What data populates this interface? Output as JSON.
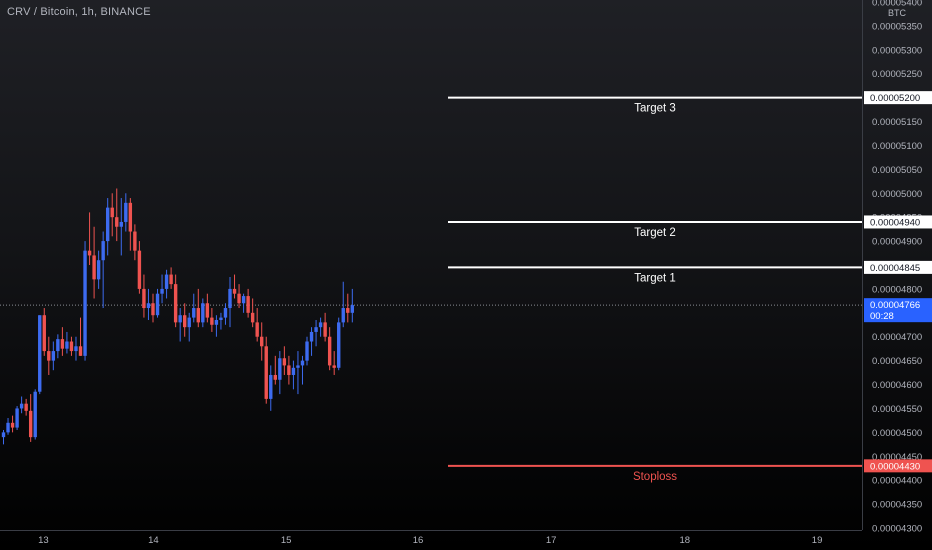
{
  "header": {
    "symbol_title": "CRV / Bitcoin, 1h, BINANCE"
  },
  "price_axis": {
    "currency": "BTC",
    "current_price": "0.00004766",
    "countdown": "00:28"
  },
  "colors": {
    "up": "#3d6bf0",
    "down": "#ef5350",
    "target_line": "#ffffff",
    "stop_line": "#ef5350",
    "axis_text": "#b2b5be",
    "price_tag_bg": "#2962ff"
  },
  "chart_data": {
    "type": "candlestick",
    "ylim": [
      4.3e-05,
      5.4e-05
    ],
    "y_ticks": [
      "0.00004300",
      "0.00004350",
      "0.00004400",
      "0.00004450",
      "0.00004500",
      "0.00004550",
      "0.00004600",
      "0.00004650",
      "0.00004700",
      "0.00004750",
      "0.00004800",
      "0.00004850",
      "0.00004900",
      "0.00004950",
      "0.00005000",
      "0.00005050",
      "0.00005100",
      "0.00005150",
      "0.00005200",
      "0.00005250",
      "0.00005300",
      "0.00005350",
      "0.00005400"
    ],
    "x_ticks": [
      {
        "label": "13",
        "index": 8.8
      },
      {
        "label": "14",
        "index": 33.1
      },
      {
        "label": "15",
        "index": 62.4
      },
      {
        "label": "16",
        "index": 91.5
      },
      {
        "label": "17",
        "index": 120.9
      },
      {
        "label": "18",
        "index": 150.4
      },
      {
        "label": "19",
        "index": 179.6
      }
    ],
    "levels": [
      {
        "name": "Target 3",
        "value": 5.2e-05,
        "label": "0.00005200",
        "kind": "target"
      },
      {
        "name": "Target 2",
        "value": 4.94e-05,
        "label": "0.00004940",
        "kind": "target"
      },
      {
        "name": "Target 1",
        "value": 4.845e-05,
        "label": "0.00004845",
        "kind": "target"
      },
      {
        "name": "Stoploss",
        "value": 4.43e-05,
        "label": "0.00004430",
        "kind": "stop"
      }
    ],
    "ohlc": [
      [
        4.49e-05,
        4.505e-05,
        4.475e-05,
        4.5e-05
      ],
      [
        4.5e-05,
        4.53e-05,
        4.495e-05,
        4.52e-05
      ],
      [
        4.52e-05,
        4.535e-05,
        4.5e-05,
        4.51e-05
      ],
      [
        4.51e-05,
        4.555e-05,
        4.505e-05,
        4.55e-05
      ],
      [
        4.55e-05,
        4.575e-05,
        4.54e-05,
        4.56e-05
      ],
      [
        4.56e-05,
        4.57e-05,
        4.535e-05,
        4.545e-05
      ],
      [
        4.545e-05,
        4.58e-05,
        4.48e-05,
        4.49e-05
      ],
      [
        4.49e-05,
        4.59e-05,
        4.485e-05,
        4.585e-05
      ],
      [
        4.585e-05,
        4.745e-05,
        4.58e-05,
        4.745e-05
      ],
      [
        4.745e-05,
        4.76e-05,
        4.66e-05,
        4.67e-05
      ],
      [
        4.67e-05,
        4.7e-05,
        4.62e-05,
        4.65e-05
      ],
      [
        4.65e-05,
        4.69e-05,
        4.63e-05,
        4.67e-05
      ],
      [
        4.67e-05,
        4.705e-05,
        4.655e-05,
        4.695e-05
      ],
      [
        4.695e-05,
        4.72e-05,
        4.66e-05,
        4.675e-05
      ],
      [
        4.675e-05,
        4.71e-05,
        4.665e-05,
        4.69e-05
      ],
      [
        4.69e-05,
        4.7e-05,
        4.66e-05,
        4.67e-05
      ],
      [
        4.67e-05,
        4.7e-05,
        4.65e-05,
        4.68e-05
      ],
      [
        4.68e-05,
        4.74e-05,
        4.66e-05,
        4.66e-05
      ],
      [
        4.66e-05,
        4.9e-05,
        4.65e-05,
        4.88e-05
      ],
      [
        4.88e-05,
        4.96e-05,
        4.85e-05,
        4.87e-05
      ],
      [
        4.87e-05,
        4.93e-05,
        4.78e-05,
        4.82e-05
      ],
      [
        4.82e-05,
        4.88e-05,
        4.8e-05,
        4.86e-05
      ],
      [
        4.86e-05,
        4.92e-05,
        4.76e-05,
        4.9e-05
      ],
      [
        4.9e-05,
        4.99e-05,
        4.87e-05,
        4.97e-05
      ],
      [
        4.97e-05,
        5e-05,
        4.91e-05,
        4.95e-05
      ],
      [
        4.95e-05,
        5.01e-05,
        4.9e-05,
        4.93e-05
      ],
      [
        4.93e-05,
        4.99e-05,
        4.87e-05,
        4.94e-05
      ],
      [
        4.94e-05,
        5e-05,
        4.92e-05,
        4.98e-05
      ],
      [
        4.98e-05,
        4.99e-05,
        4.88e-05,
        4.92e-05
      ],
      [
        4.92e-05,
        4.935e-05,
        4.86e-05,
        4.88e-05
      ],
      [
        4.88e-05,
        4.9e-05,
        4.79e-05,
        4.8e-05
      ],
      [
        4.8e-05,
        4.83e-05,
        4.74e-05,
        4.76e-05
      ],
      [
        4.76e-05,
        4.8e-05,
        4.735e-05,
        4.77e-05
      ],
      [
        4.77e-05,
        4.79e-05,
        4.73e-05,
        4.745e-05
      ],
      [
        4.745e-05,
        4.8e-05,
        4.74e-05,
        4.79e-05
      ],
      [
        4.79e-05,
        4.83e-05,
        4.77e-05,
        4.8e-05
      ],
      [
        4.8e-05,
        4.84e-05,
        4.78e-05,
        4.83e-05
      ],
      [
        4.83e-05,
        4.845e-05,
        4.8e-05,
        4.81e-05
      ],
      [
        4.81e-05,
        4.83e-05,
        4.72e-05,
        4.73e-05
      ],
      [
        4.73e-05,
        4.76e-05,
        4.69e-05,
        4.745e-05
      ],
      [
        4.745e-05,
        4.77e-05,
        4.7e-05,
        4.72e-05
      ],
      [
        4.72e-05,
        4.75e-05,
        4.69e-05,
        4.74e-05
      ],
      [
        4.74e-05,
        4.79e-05,
        4.73e-05,
        4.76e-05
      ],
      [
        4.76e-05,
        4.8e-05,
        4.72e-05,
        4.73e-05
      ],
      [
        4.73e-05,
        4.78e-05,
        4.72e-05,
        4.77e-05
      ],
      [
        4.77e-05,
        4.79e-05,
        4.73e-05,
        4.74e-05
      ],
      [
        4.74e-05,
        4.76e-05,
        4.71e-05,
        4.725e-05
      ],
      [
        4.725e-05,
        4.745e-05,
        4.7e-05,
        4.735e-05
      ],
      [
        4.735e-05,
        4.75e-05,
        4.715e-05,
        4.74e-05
      ],
      [
        4.74e-05,
        4.77e-05,
        4.725e-05,
        4.76e-05
      ],
      [
        4.76e-05,
        4.825e-05,
        4.72e-05,
        4.8e-05
      ],
      [
        4.8e-05,
        4.83e-05,
        4.78e-05,
        4.79e-05
      ],
      [
        4.79e-05,
        4.81e-05,
        4.76e-05,
        4.77e-05
      ],
      [
        4.77e-05,
        4.79e-05,
        4.75e-05,
        4.785e-05
      ],
      [
        4.785e-05,
        4.8e-05,
        4.74e-05,
        4.75e-05
      ],
      [
        4.75e-05,
        4.78e-05,
        4.72e-05,
        4.73e-05
      ],
      [
        4.73e-05,
        4.76e-05,
        4.69e-05,
        4.7e-05
      ],
      [
        4.7e-05,
        4.73e-05,
        4.65e-05,
        4.68e-05
      ],
      [
        4.68e-05,
        4.7e-05,
        4.56e-05,
        4.57e-05
      ],
      [
        4.57e-05,
        4.64e-05,
        4.545e-05,
        4.62e-05
      ],
      [
        4.62e-05,
        4.66e-05,
        4.6e-05,
        4.61e-05
      ],
      [
        4.61e-05,
        4.67e-05,
        4.58e-05,
        4.655e-05
      ],
      [
        4.655e-05,
        4.68e-05,
        4.62e-05,
        4.64e-05
      ],
      [
        4.64e-05,
        4.66e-05,
        4.6e-05,
        4.62e-05
      ],
      [
        4.62e-05,
        4.65e-05,
        4.59e-05,
        4.635e-05
      ],
      [
        4.635e-05,
        4.67e-05,
        4.58e-05,
        4.64e-05
      ],
      [
        4.64e-05,
        4.66e-05,
        4.6e-05,
        4.65e-05
      ],
      [
        4.65e-05,
        4.7e-05,
        4.64e-05,
        4.69e-05
      ],
      [
        4.69e-05,
        4.72e-05,
        4.66e-05,
        4.71e-05
      ],
      [
        4.71e-05,
        4.735e-05,
        4.68e-05,
        4.72e-05
      ],
      [
        4.72e-05,
        4.74e-05,
        4.7e-05,
        4.73e-05
      ],
      [
        4.73e-05,
        4.75e-05,
        4.69e-05,
        4.7e-05
      ],
      [
        4.7e-05,
        4.72e-05,
        4.63e-05,
        4.64e-05
      ],
      [
        4.64e-05,
        4.67e-05,
        4.62e-05,
        4.635e-05
      ],
      [
        4.635e-05,
        4.74e-05,
        4.63e-05,
        4.73e-05
      ],
      [
        4.73e-05,
        4.815e-05,
        4.72e-05,
        4.76e-05
      ],
      [
        4.76e-05,
        4.79e-05,
        4.73e-05,
        4.75e-05
      ],
      [
        4.75e-05,
        4.8e-05,
        4.73e-05,
        4.766e-05
      ]
    ]
  }
}
